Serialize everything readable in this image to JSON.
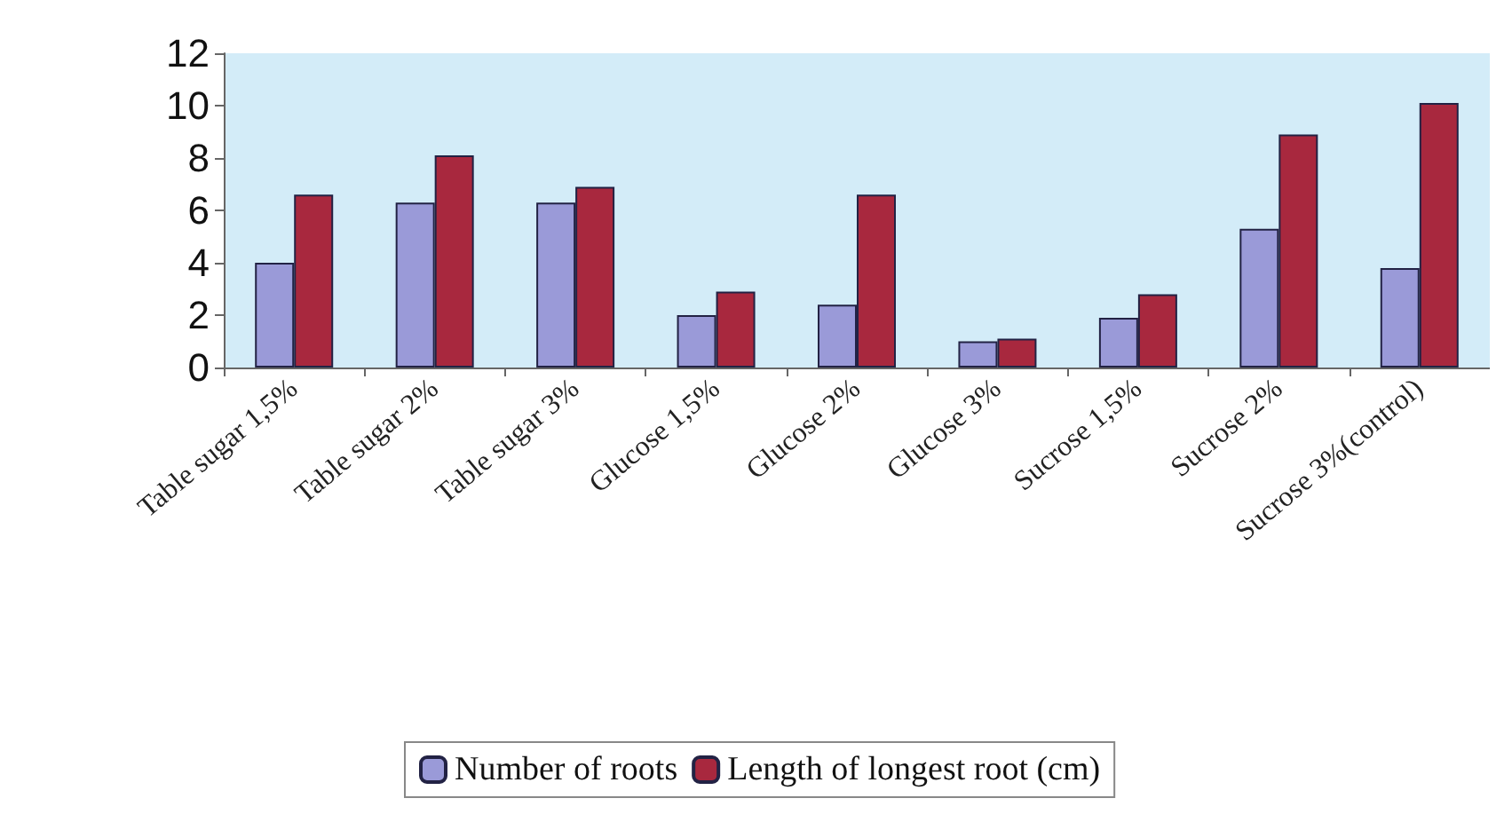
{
  "chart_data": {
    "type": "bar",
    "categories": [
      "Table sugar 1,5%",
      "Table sugar 2%",
      "Table sugar 3%",
      "Glucose 1,5%",
      "Glucose 2%",
      "Glucose 3%",
      "Sucrose 1,5%",
      "Sucrose 2%",
      "Sucrose 3%(control)"
    ],
    "series": [
      {
        "name": "Number of roots",
        "color": "#9a9ad8",
        "values": [
          4.0,
          6.3,
          6.3,
          2.0,
          2.4,
          1.0,
          1.9,
          5.3,
          3.8
        ]
      },
      {
        "name": "Length of longest root (cm)",
        "color": "#a8283e",
        "values": [
          6.6,
          8.1,
          6.9,
          2.9,
          6.6,
          1.1,
          2.8,
          8.9,
          10.1
        ]
      }
    ],
    "ylim": [
      0,
      12
    ],
    "yticks": [
      0,
      2,
      4,
      6,
      8,
      10,
      12
    ],
    "grid": false,
    "legend": "bottom"
  }
}
